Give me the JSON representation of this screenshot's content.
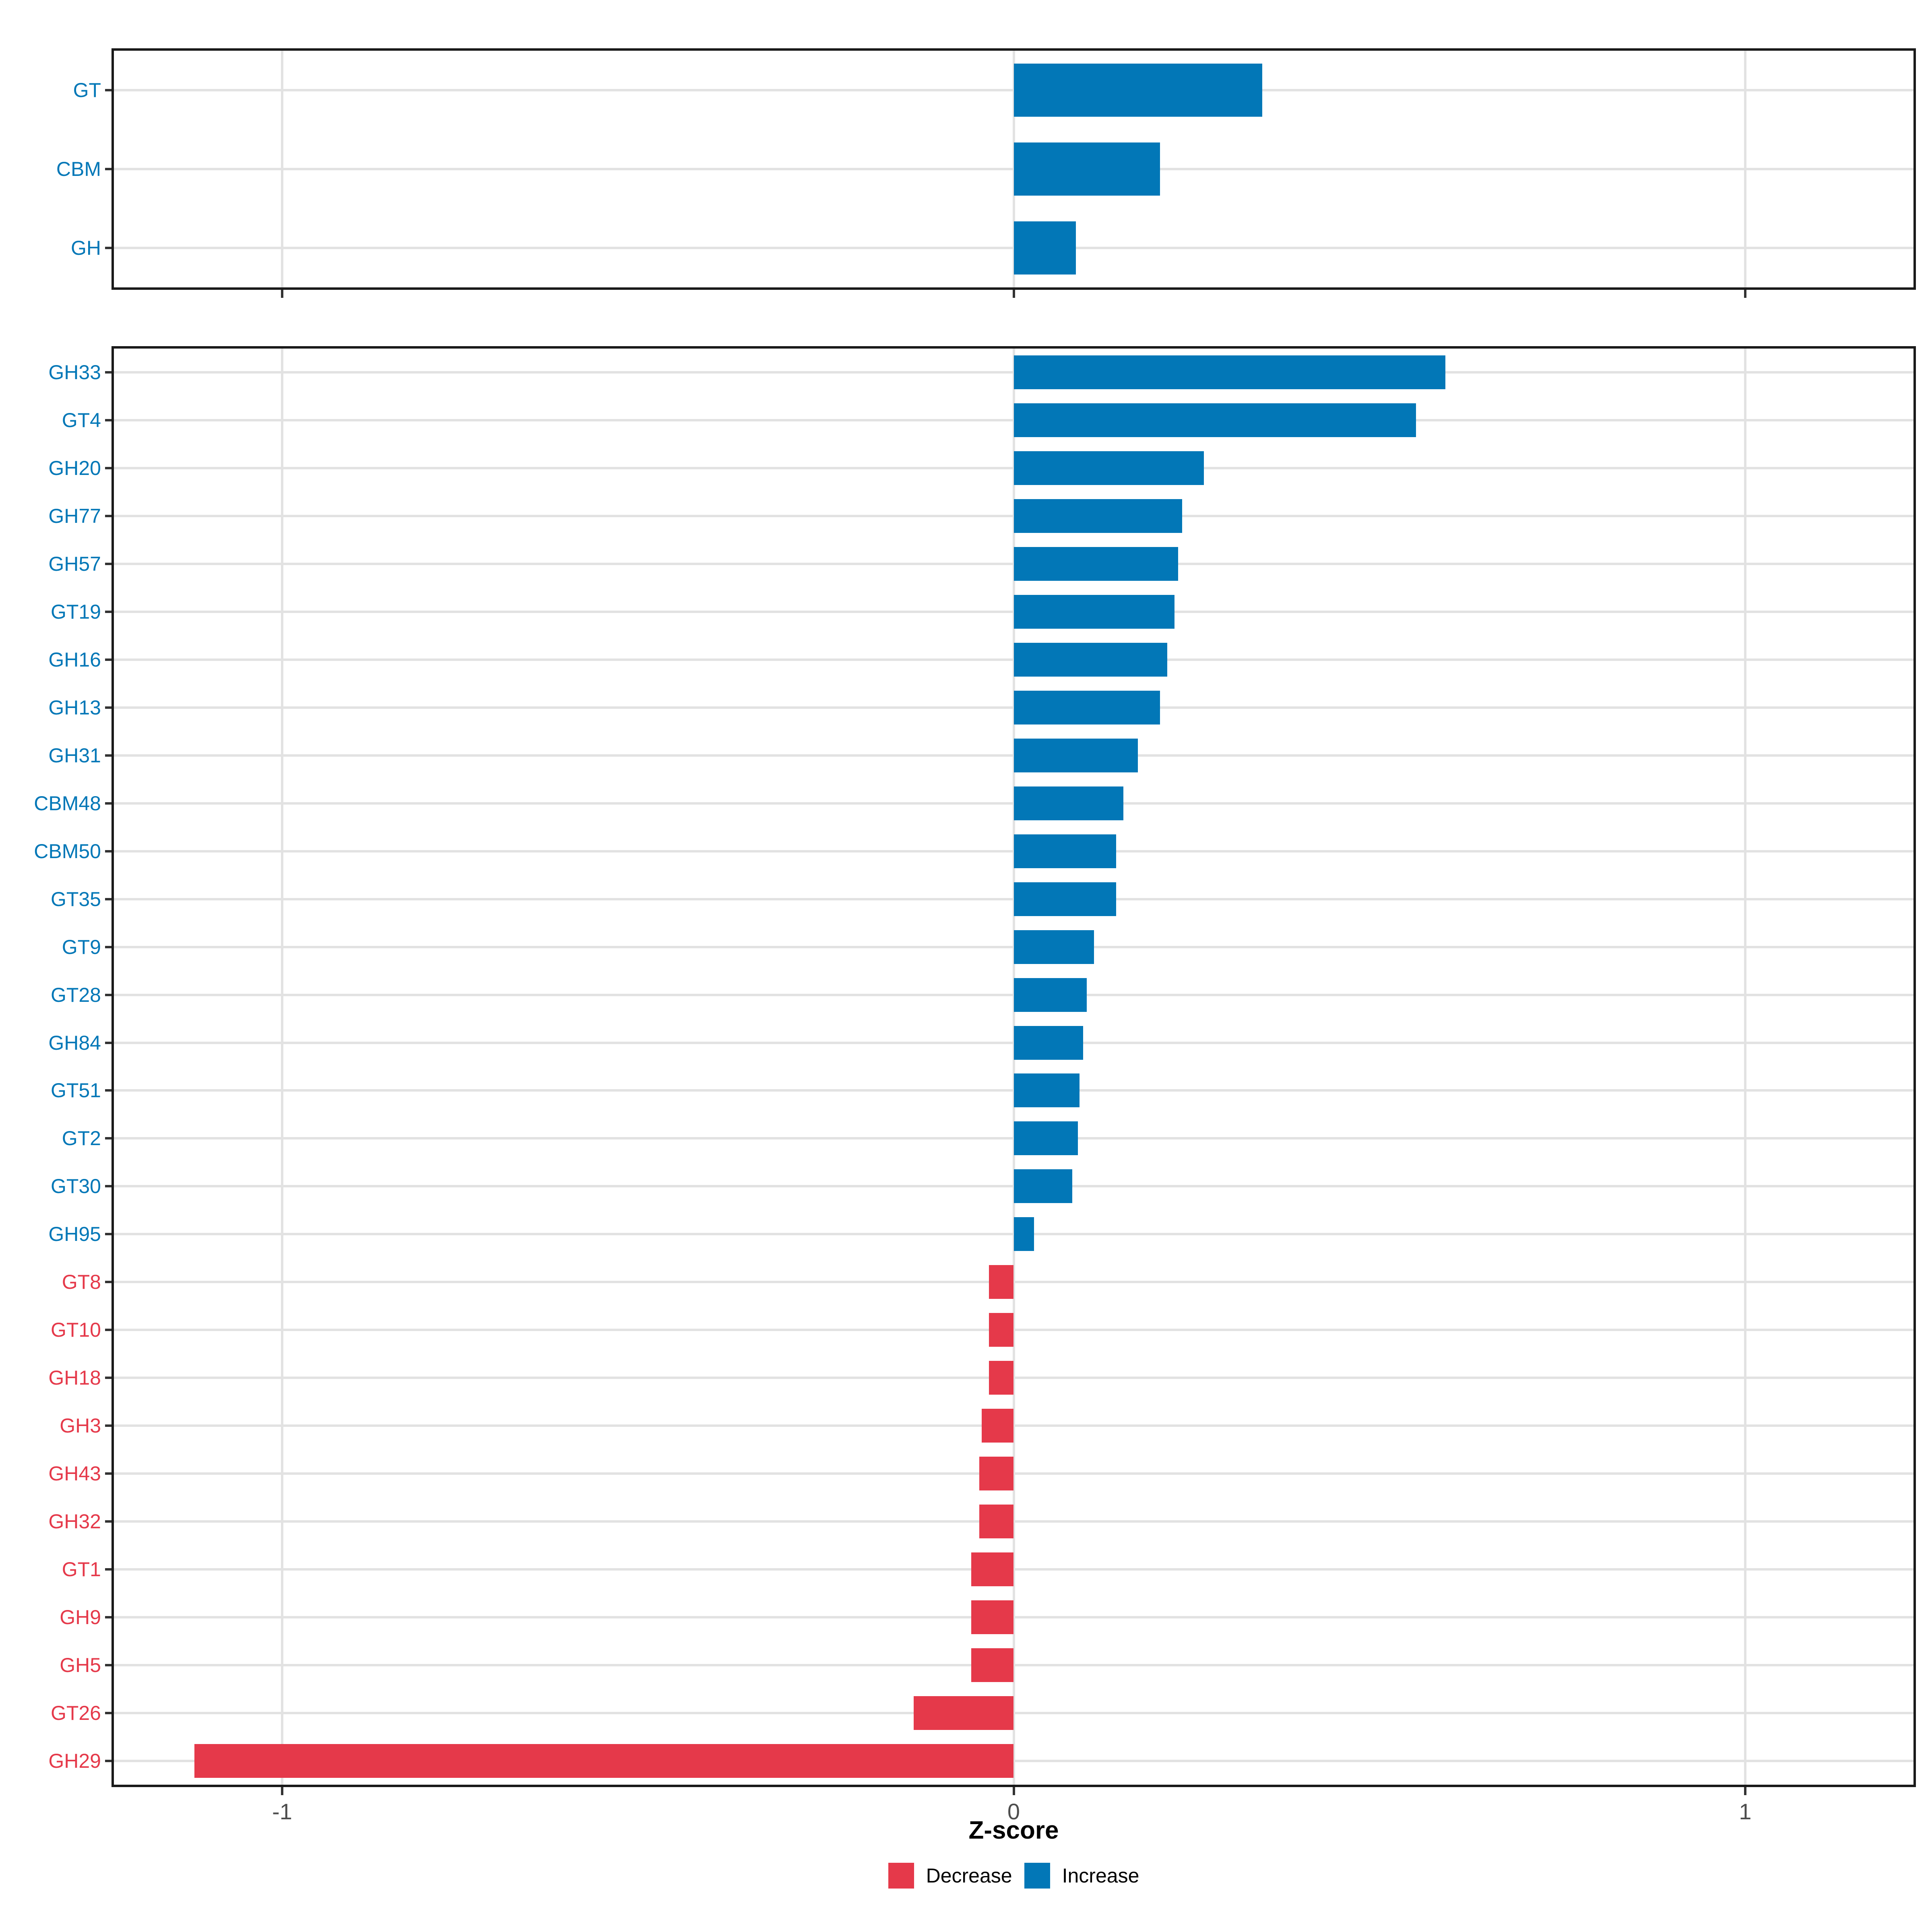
{
  "figure": {
    "background": "#FFFFFF"
  },
  "axis": {
    "title": "Z-score",
    "xlim": [
      -1.23,
      1.23
    ],
    "grid": true,
    "ticks": [
      {
        "label": "-1",
        "value": -1
      },
      {
        "label": "0",
        "value": 0
      },
      {
        "label": "1",
        "value": 1
      }
    ]
  },
  "legend": {
    "position": "bottom",
    "items": [
      {
        "label": "Decrease",
        "color": "#E5394A"
      },
      {
        "label": "Increase",
        "color": "#0277B7"
      }
    ]
  },
  "colors": {
    "increase": "#0277B7",
    "decrease": "#E5394A",
    "gridline": "#E2E2E2",
    "panel_border": "#1A1A1A",
    "tick_mark": "#333333",
    "tick_label": "#4D4D4D"
  },
  "chart_data": [
    {
      "type": "bar",
      "orientation": "horizontal",
      "panel": "top",
      "title": "",
      "xlabel": "Z-score",
      "ylabel": "",
      "xlim": [
        -1.23,
        1.23
      ],
      "categories": [
        "GT",
        "CBM",
        "GH"
      ],
      "values": [
        0.34,
        0.2,
        0.085
      ],
      "directions": [
        "Increase",
        "Increase",
        "Increase"
      ]
    },
    {
      "type": "bar",
      "orientation": "horizontal",
      "panel": "bottom",
      "title": "",
      "xlabel": "Z-score",
      "ylabel": "",
      "xlim": [
        -1.23,
        1.23
      ],
      "categories": [
        "GH33",
        "GT4",
        "GH20",
        "GH77",
        "GH57",
        "GT19",
        "GH16",
        "GH13",
        "GH31",
        "CBM48",
        "CBM50",
        "GT35",
        "GT9",
        "GT28",
        "GH84",
        "GT51",
        "GT2",
        "GT30",
        "GH95",
        "GT8",
        "GT10",
        "GH18",
        "GH3",
        "GH43",
        "GH32",
        "GT1",
        "GH9",
        "GH5",
        "GT26",
        "GH29"
      ],
      "values": [
        0.59,
        0.55,
        0.26,
        0.23,
        0.225,
        0.22,
        0.21,
        0.2,
        0.17,
        0.15,
        0.14,
        0.14,
        0.11,
        0.1,
        0.095,
        0.09,
        0.088,
        0.08,
        0.028,
        -0.034,
        -0.034,
        -0.034,
        -0.044,
        -0.047,
        -0.047,
        -0.058,
        -0.058,
        -0.058,
        -0.137,
        -1.12
      ],
      "directions": [
        "Increase",
        "Increase",
        "Increase",
        "Increase",
        "Increase",
        "Increase",
        "Increase",
        "Increase",
        "Increase",
        "Increase",
        "Increase",
        "Increase",
        "Increase",
        "Increase",
        "Increase",
        "Increase",
        "Increase",
        "Increase",
        "Increase",
        "Decrease",
        "Decrease",
        "Decrease",
        "Decrease",
        "Decrease",
        "Decrease",
        "Decrease",
        "Decrease",
        "Decrease",
        "Decrease",
        "Decrease"
      ]
    }
  ]
}
